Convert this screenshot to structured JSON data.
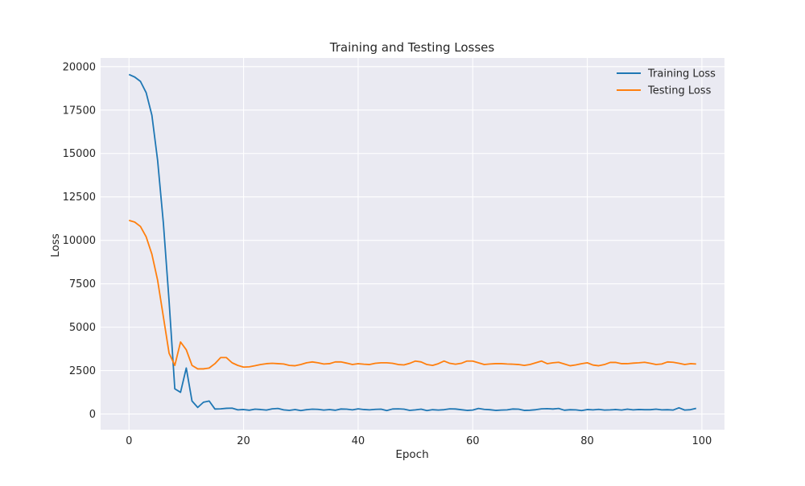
{
  "chart_data": {
    "type": "line",
    "title": "Training and Testing Losses",
    "xlabel": "Epoch",
    "ylabel": "Loss",
    "xlim": [
      -4.95,
      103.95
    ],
    "ylim": [
      -900,
      20500
    ],
    "xticks": [
      0,
      20,
      40,
      60,
      80,
      100
    ],
    "yticks": [
      0,
      2500,
      5000,
      7500,
      10000,
      12500,
      15000,
      17500,
      20000
    ],
    "grid": true,
    "legend_position": "top-right",
    "x": [
      0,
      1,
      2,
      3,
      4,
      5,
      6,
      7,
      8,
      9,
      10,
      11,
      12,
      13,
      14,
      15,
      16,
      17,
      18,
      19,
      20,
      21,
      22,
      23,
      24,
      25,
      26,
      27,
      28,
      29,
      30,
      31,
      32,
      33,
      34,
      35,
      36,
      37,
      38,
      39,
      40,
      41,
      42,
      43,
      44,
      45,
      46,
      47,
      48,
      49,
      50,
      51,
      52,
      53,
      54,
      55,
      56,
      57,
      58,
      59,
      60,
      61,
      62,
      63,
      64,
      65,
      66,
      67,
      68,
      69,
      70,
      71,
      72,
      73,
      74,
      75,
      76,
      77,
      78,
      79,
      80,
      81,
      82,
      83,
      84,
      85,
      86,
      87,
      88,
      89,
      90,
      91,
      92,
      93,
      94,
      95,
      96,
      97,
      98,
      99
    ],
    "series": [
      {
        "name": "Training Loss",
        "color": "#1f77b4",
        "values": [
          19550,
          19400,
          19150,
          18500,
          17200,
          14600,
          11000,
          6500,
          1450,
          1250,
          2650,
          750,
          380,
          680,
          750,
          290,
          300,
          330,
          340,
          240,
          260,
          220,
          280,
          260,
          230,
          300,
          320,
          240,
          210,
          260,
          200,
          250,
          280,
          270,
          230,
          260,
          220,
          290,
          280,
          240,
          300,
          260,
          240,
          270,
          280,
          200,
          290,
          300,
          280,
          210,
          240,
          280,
          200,
          250,
          230,
          250,
          300,
          290,
          250,
          210,
          230,
          320,
          270,
          250,
          210,
          230,
          240,
          290,
          280,
          210,
          220,
          250,
          300,
          310,
          290,
          320,
          220,
          250,
          240,
          200,
          260,
          240,
          270,
          230,
          240,
          260,
          230,
          280,
          240,
          260,
          250,
          250,
          280,
          240,
          250,
          230,
          360,
          230,
          250,
          330
        ]
      },
      {
        "name": "Testing Loss",
        "color": "#ff7f0e",
        "values": [
          11150,
          11050,
          10800,
          10200,
          9200,
          7700,
          5600,
          3500,
          2800,
          4150,
          3700,
          2800,
          2600,
          2600,
          2650,
          2900,
          3250,
          3250,
          2950,
          2800,
          2700,
          2720,
          2780,
          2850,
          2900,
          2920,
          2900,
          2880,
          2800,
          2780,
          2850,
          2950,
          3000,
          2950,
          2880,
          2900,
          3000,
          3000,
          2930,
          2850,
          2900,
          2870,
          2850,
          2920,
          2950,
          2950,
          2920,
          2850,
          2830,
          2920,
          3050,
          3000,
          2850,
          2800,
          2900,
          3050,
          2920,
          2870,
          2920,
          3050,
          3050,
          2950,
          2850,
          2880,
          2900,
          2900,
          2880,
          2870,
          2850,
          2800,
          2850,
          2950,
          3050,
          2900,
          2950,
          2980,
          2880,
          2780,
          2830,
          2900,
          2950,
          2820,
          2780,
          2850,
          2970,
          2970,
          2900,
          2900,
          2930,
          2950,
          2980,
          2920,
          2850,
          2880,
          3000,
          2980,
          2920,
          2850,
          2900,
          2880
        ]
      }
    ]
  },
  "style": {
    "plot_background": "#eaeaf2",
    "grid_color": "#ffffff",
    "figure_background": "#ffffff"
  }
}
